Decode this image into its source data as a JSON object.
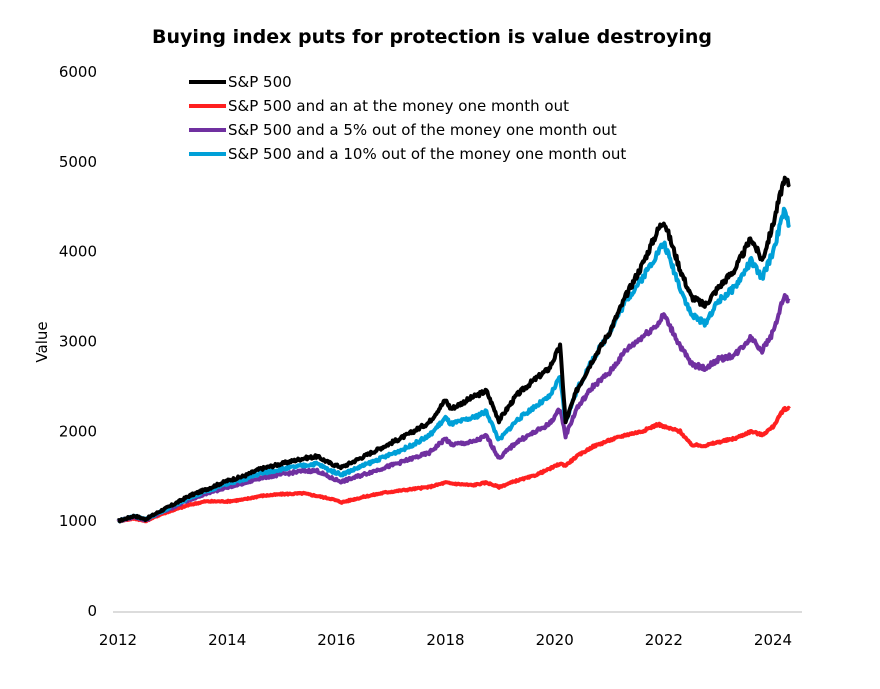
{
  "chart_data": {
    "type": "line",
    "title": "Buying index puts for protection is value destroying",
    "xlabel": "",
    "ylabel": "Value",
    "xlim": [
      2012,
      2024.3
    ],
    "ylim": [
      0,
      6000
    ],
    "x_ticks": [
      "2012",
      "2014",
      "2016",
      "2018",
      "2020",
      "2022",
      "2024"
    ],
    "y_ticks": [
      "0",
      "1000",
      "2000",
      "3000",
      "4000",
      "5000",
      "6000"
    ],
    "grid": false,
    "legend_position": "top-left",
    "x": [
      2012.0,
      2012.3,
      2012.5,
      2012.8,
      2013.0,
      2013.3,
      2013.6,
      2014.0,
      2014.3,
      2014.6,
      2015.0,
      2015.4,
      2015.65,
      2015.9,
      2016.1,
      2016.5,
      2016.9,
      2017.3,
      2017.7,
      2018.0,
      2018.1,
      2018.5,
      2018.75,
      2018.98,
      2019.3,
      2019.6,
      2019.9,
      2020.1,
      2020.2,
      2020.4,
      2020.7,
      2021.0,
      2021.3,
      2021.6,
      2021.9,
      2022.0,
      2022.3,
      2022.5,
      2022.75,
      2023.0,
      2023.3,
      2023.6,
      2023.8,
      2024.0,
      2024.2,
      2024.3
    ],
    "series": [
      {
        "name": "S&P 500",
        "color": "#000000",
        "values": [
          1000,
          1060,
          1020,
          1120,
          1180,
          1280,
          1350,
          1450,
          1500,
          1580,
          1640,
          1700,
          1720,
          1640,
          1600,
          1720,
          1840,
          1960,
          2100,
          2350,
          2250,
          2380,
          2450,
          2120,
          2400,
          2560,
          2700,
          2950,
          2100,
          2450,
          2800,
          3100,
          3500,
          3850,
          4250,
          4350,
          3800,
          3500,
          3400,
          3600,
          3800,
          4150,
          3900,
          4300,
          4800,
          4750
        ]
      },
      {
        "name": "S&P 500 and an at the money one month out",
        "color": "#ff2020",
        "values": [
          1000,
          1030,
          1000,
          1080,
          1120,
          1180,
          1220,
          1220,
          1240,
          1280,
          1300,
          1310,
          1280,
          1250,
          1210,
          1270,
          1320,
          1350,
          1380,
          1430,
          1420,
          1400,
          1430,
          1380,
          1450,
          1500,
          1580,
          1640,
          1620,
          1720,
          1830,
          1900,
          1960,
          2000,
          2080,
          2050,
          2000,
          1850,
          1840,
          1880,
          1920,
          2000,
          1960,
          2050,
          2250,
          2250
        ]
      },
      {
        "name": "S&P 500 and a 5% out of the money one month out",
        "color": "#7030a0",
        "values": [
          1000,
          1050,
          1010,
          1100,
          1150,
          1240,
          1300,
          1380,
          1420,
          1480,
          1520,
          1560,
          1560,
          1480,
          1440,
          1520,
          1600,
          1680,
          1760,
          1920,
          1850,
          1880,
          1950,
          1700,
          1880,
          1980,
          2080,
          2250,
          1950,
          2250,
          2500,
          2650,
          2900,
          3050,
          3200,
          3300,
          2950,
          2750,
          2700,
          2800,
          2850,
          3050,
          2900,
          3100,
          3500,
          3450
        ]
      },
      {
        "name": "S&P 500 and a 10% out of the money one month out",
        "color": "#00a0d8",
        "values": [
          1000,
          1060,
          1020,
          1110,
          1170,
          1260,
          1330,
          1420,
          1460,
          1530,
          1580,
          1620,
          1640,
          1560,
          1520,
          1620,
          1720,
          1820,
          1950,
          2150,
          2080,
          2150,
          2220,
          1900,
          2120,
          2260,
          2380,
          2600,
          2100,
          2450,
          2800,
          3100,
          3450,
          3700,
          4000,
          4100,
          3600,
          3300,
          3200,
          3450,
          3600,
          3900,
          3700,
          4000,
          4450,
          4300
        ]
      }
    ]
  }
}
